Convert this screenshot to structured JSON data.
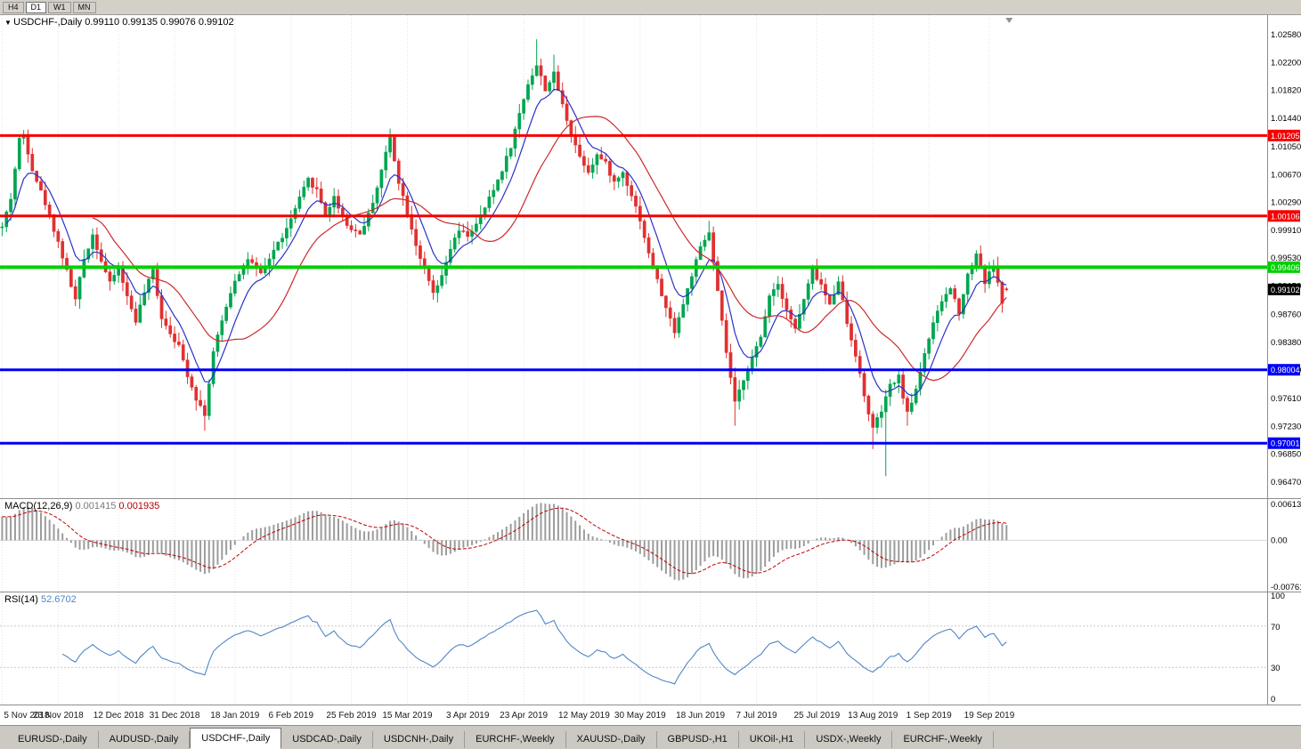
{
  "toolbar": {
    "buttons": [
      {
        "label": "H4",
        "active": false
      },
      {
        "label": "D1",
        "active": true
      },
      {
        "label": "W1",
        "active": false
      },
      {
        "label": "MN",
        "active": false
      }
    ]
  },
  "main_chart": {
    "header": {
      "dropdown_icon": "▼",
      "symbol": "USDCHF-,Daily",
      "open": "0.99110",
      "high": "0.99135",
      "low": "0.99076",
      "close": "0.99102"
    },
    "y_axis_ticks": [
      "1.02580",
      "1.02200",
      "1.01820",
      "1.01440",
      "1.01050",
      "1.00670",
      "1.00290",
      "0.99910",
      "0.99530",
      "0.99150",
      "0.98760",
      "0.98380",
      "0.98000",
      "0.97610",
      "0.97230",
      "0.96850",
      "0.96470"
    ],
    "hlines": [
      {
        "price": 1.01205,
        "label": "1.01205",
        "color": "#f40000",
        "width": 3
      },
      {
        "price": 1.00106,
        "label": "1.00106",
        "color": "#f40000",
        "width": 3
      },
      {
        "price": 0.99406,
        "label": "0.99406",
        "color": "#00d000",
        "width": 4
      },
      {
        "price": 0.98004,
        "label": "0.98004",
        "color": "#0000f5",
        "width": 3
      },
      {
        "price": 0.97001,
        "label": "0.97001",
        "color": "#0000f5",
        "width": 3
      }
    ],
    "current_price": {
      "value": 0.99102,
      "label": "0.99102",
      "badge_color": "#000000"
    }
  },
  "macd_panel": {
    "title": "MACD(12,26,9)",
    "macd_value": "0.001415",
    "signal_value": "0.001935",
    "axis": [
      {
        "label": "0.00613",
        "value": 0.00613
      },
      {
        "label": "0.00",
        "value": 0
      },
      {
        "label": "-0.00761",
        "value": -0.00761
      }
    ]
  },
  "rsi_panel": {
    "title": "RSI(14)",
    "value": "52.6702",
    "axis": [
      {
        "label": "100",
        "value": 100
      },
      {
        "label": "70",
        "value": 70
      },
      {
        "label": "30",
        "value": 30
      },
      {
        "label": "0",
        "value": 0
      }
    ],
    "levels": [
      70,
      30
    ]
  },
  "x_axis": {
    "labels": [
      "5 Nov 2018",
      "23 Nov 2018",
      "12 Dec 2018",
      "31 Dec 2018",
      "18 Jan 2019",
      "6 Feb 2019",
      "25 Feb 2019",
      "15 Mar 2019",
      "3 Apr 2019",
      "23 Apr 2019",
      "12 May 2019",
      "30 May 2019",
      "18 Jun 2019",
      "7 Jul 2019",
      "25 Jul 2019",
      "13 Aug 2019",
      "1 Sep 2019",
      "19 Sep 2019"
    ],
    "bars": [
      0,
      13,
      27,
      40,
      54,
      67,
      81,
      94,
      108,
      121,
      135,
      148,
      162,
      175,
      189,
      202,
      215,
      229
    ]
  },
  "tabs": {
    "items": [
      "EURUSD-,Daily",
      "AUDUSD-,Daily",
      "USDCHF-,Daily",
      "USDCAD-,Daily",
      "USDCNH-,Daily",
      "EURCHF-,Weekly",
      "XAUUSD-,Daily",
      "GBPUSD-,H1",
      "UKOil-,H1",
      "USDX-,Weekly",
      "EURCHF-,Weekly"
    ],
    "active_index": 2
  },
  "chart_data": {
    "type": "candlestick",
    "symbol": "USDCHF",
    "timeframe": "Daily",
    "title": "USDCHF-,Daily",
    "price_range": {
      "min": 0.9625,
      "max": 1.0285
    },
    "bars": 234,
    "right_margin_frac": 0.204,
    "seed": 42,
    "close_jitter": 0.0007,
    "wick_jitter": 0.0014,
    "anchors": [
      [
        0,
        0.9995
      ],
      [
        2,
        1.0035
      ],
      [
        4,
        1.0115
      ],
      [
        5,
        1.0122
      ],
      [
        7,
        1.0075
      ],
      [
        10,
        1.0028
      ],
      [
        13,
        0.9975
      ],
      [
        15,
        0.9935
      ],
      [
        17,
        0.9896
      ],
      [
        19,
        0.9952
      ],
      [
        21,
        0.9985
      ],
      [
        23,
        0.995
      ],
      [
        25,
        0.9918
      ],
      [
        27,
        0.9942
      ],
      [
        29,
        0.99
      ],
      [
        31,
        0.9868
      ],
      [
        33,
        0.9906
      ],
      [
        35,
        0.9936
      ],
      [
        37,
        0.9872
      ],
      [
        39,
        0.9852
      ],
      [
        41,
        0.9832
      ],
      [
        43,
        0.9794
      ],
      [
        45,
        0.9762
      ],
      [
        47,
        0.974
      ],
      [
        49,
        0.9824
      ],
      [
        52,
        0.9888
      ],
      [
        54,
        0.9924
      ],
      [
        57,
        0.9952
      ],
      [
        60,
        0.993
      ],
      [
        63,
        0.9964
      ],
      [
        66,
        0.9992
      ],
      [
        69,
        1.0034
      ],
      [
        71,
        1.006
      ],
      [
        73,
        1.0046
      ],
      [
        75,
        1.0012
      ],
      [
        77,
        1.0036
      ],
      [
        80,
        0.9998
      ],
      [
        83,
        0.9986
      ],
      [
        85,
        1.0012
      ],
      [
        87,
        1.005
      ],
      [
        89,
        1.0096
      ],
      [
        90,
        1.0118
      ],
      [
        92,
        1.0058
      ],
      [
        94,
        1.0016
      ],
      [
        96,
        0.9972
      ],
      [
        98,
        0.9936
      ],
      [
        100,
        0.9904
      ],
      [
        102,
        0.9926
      ],
      [
        104,
        0.9966
      ],
      [
        106,
        0.999
      ],
      [
        108,
        0.9984
      ],
      [
        110,
        0.9998
      ],
      [
        112,
        1.0022
      ],
      [
        114,
        1.0046
      ],
      [
        116,
        1.0074
      ],
      [
        118,
        1.0106
      ],
      [
        120,
        1.015
      ],
      [
        122,
        1.0192
      ],
      [
        124,
        1.0216
      ],
      [
        126,
        1.0184
      ],
      [
        128,
        1.0204
      ],
      [
        130,
        1.0162
      ],
      [
        132,
        1.0124
      ],
      [
        134,
        1.0092
      ],
      [
        136,
        1.0072
      ],
      [
        138,
        1.0094
      ],
      [
        140,
        1.0082
      ],
      [
        142,
        1.0056
      ],
      [
        144,
        1.007
      ],
      [
        146,
        1.004
      ],
      [
        148,
        1.0006
      ],
      [
        150,
        0.9958
      ],
      [
        152,
        0.9922
      ],
      [
        154,
        0.9884
      ],
      [
        156,
        0.9854
      ],
      [
        158,
        0.989
      ],
      [
        160,
        0.993
      ],
      [
        162,
        0.9966
      ],
      [
        164,
        0.9988
      ],
      [
        166,
        0.9906
      ],
      [
        168,
        0.9824
      ],
      [
        170,
        0.9754
      ],
      [
        172,
        0.9788
      ],
      [
        174,
        0.9816
      ],
      [
        176,
        0.9844
      ],
      [
        178,
        0.9904
      ],
      [
        180,
        0.9918
      ],
      [
        182,
        0.9884
      ],
      [
        184,
        0.9856
      ],
      [
        186,
        0.9896
      ],
      [
        188,
        0.9936
      ],
      [
        190,
        0.9916
      ],
      [
        192,
        0.9888
      ],
      [
        194,
        0.9924
      ],
      [
        196,
        0.9864
      ],
      [
        198,
        0.9822
      ],
      [
        200,
        0.9764
      ],
      [
        202,
        0.972
      ],
      [
        204,
        0.9744
      ],
      [
        206,
        0.9778
      ],
      [
        208,
        0.979
      ],
      [
        210,
        0.974
      ],
      [
        212,
        0.9774
      ],
      [
        214,
        0.9824
      ],
      [
        216,
        0.9862
      ],
      [
        218,
        0.9894
      ],
      [
        220,
        0.9912
      ],
      [
        222,
        0.988
      ],
      [
        224,
        0.993
      ],
      [
        226,
        0.996
      ],
      [
        228,
        0.992
      ],
      [
        230,
        0.9944
      ],
      [
        232,
        0.9892
      ],
      [
        233,
        0.991
      ]
    ],
    "overrides": {
      "5": {
        "h": 1.0128
      },
      "47": {
        "l": 0.9717
      },
      "90": {
        "h": 1.013
      },
      "124": {
        "h": 1.0252
      },
      "128": {
        "h": 1.0231
      },
      "164": {
        "h": 1.0004
      },
      "170": {
        "l": 0.9724
      },
      "202": {
        "l": 0.9692
      },
      "205": {
        "l": 0.9655
      },
      "210": {
        "l": 0.9724
      },
      "233": {
        "o": 0.9911,
        "h": 0.99135,
        "l": 0.99076,
        "c": 0.99102
      }
    },
    "ma_fast_period": 8,
    "ma_slow_period": 21,
    "macd": {
      "fast": 12,
      "slow": 26,
      "signal": 9,
      "range": {
        "min": -0.00761,
        "max": 0.00613
      },
      "seed_offsets": [
        -0.001,
        -0.0045
      ]
    },
    "rsi_period": 14,
    "colors": {
      "bull": "#00a550",
      "bear": "#e03030",
      "ma_fast": "#2b32c8",
      "ma_slow": "#cc2a2a",
      "macd_hist": "#9c9c9c",
      "macd_signal": "#c00000",
      "rsi": "#4f86c6",
      "grid": "#e2e2e2",
      "divider": "#8e8e8e",
      "axis_text": "#000000"
    }
  }
}
